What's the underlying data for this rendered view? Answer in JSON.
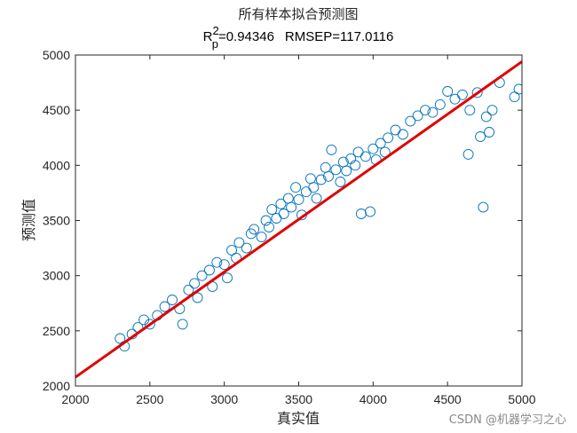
{
  "chart_data": {
    "type": "scatter",
    "title": "所有样本拟合预测图",
    "subtitle": {
      "r_symbol": "R",
      "r_superscript": "2",
      "r_subscript": "p",
      "r_value_text": "=0.94346",
      "rmsep_text": "RMSEP=117.0116"
    },
    "xlabel": "真实值",
    "ylabel": "预测值",
    "xlim": [
      2000,
      5000
    ],
    "ylim": [
      2000,
      5000
    ],
    "xticks": [
      2000,
      2500,
      3000,
      3500,
      4000,
      4500,
      5000
    ],
    "yticks": [
      2000,
      2500,
      3000,
      3500,
      4000,
      4500,
      5000
    ],
    "grid": false,
    "marker": "open-circle",
    "marker_color": "#0072BD",
    "fit_line": {
      "color": "#E00000",
      "x": [
        2000,
        5000
      ],
      "y": [
        2080,
        4940
      ]
    },
    "points": [
      [
        2300,
        2430
      ],
      [
        2330,
        2360
      ],
      [
        2380,
        2470
      ],
      [
        2420,
        2530
      ],
      [
        2460,
        2600
      ],
      [
        2500,
        2560
      ],
      [
        2550,
        2640
      ],
      [
        2600,
        2720
      ],
      [
        2650,
        2780
      ],
      [
        2700,
        2700
      ],
      [
        2720,
        2560
      ],
      [
        2760,
        2870
      ],
      [
        2800,
        2930
      ],
      [
        2820,
        2800
      ],
      [
        2850,
        3000
      ],
      [
        2900,
        3050
      ],
      [
        2920,
        2900
      ],
      [
        2950,
        3120
      ],
      [
        3000,
        3100
      ],
      [
        3020,
        2980
      ],
      [
        3050,
        3230
      ],
      [
        3080,
        3160
      ],
      [
        3100,
        3300
      ],
      [
        3150,
        3250
      ],
      [
        3180,
        3380
      ],
      [
        3200,
        3420
      ],
      [
        3250,
        3350
      ],
      [
        3280,
        3500
      ],
      [
        3300,
        3440
      ],
      [
        3320,
        3600
      ],
      [
        3350,
        3520
      ],
      [
        3380,
        3650
      ],
      [
        3400,
        3560
      ],
      [
        3430,
        3700
      ],
      [
        3450,
        3620
      ],
      [
        3480,
        3800
      ],
      [
        3500,
        3690
      ],
      [
        3520,
        3550
      ],
      [
        3550,
        3760
      ],
      [
        3580,
        3880
      ],
      [
        3600,
        3800
      ],
      [
        3620,
        3700
      ],
      [
        3650,
        3870
      ],
      [
        3680,
        3980
      ],
      [
        3700,
        3900
      ],
      [
        3720,
        4140
      ],
      [
        3750,
        3960
      ],
      [
        3780,
        3850
      ],
      [
        3800,
        4030
      ],
      [
        3820,
        3950
      ],
      [
        3850,
        4060
      ],
      [
        3880,
        4000
      ],
      [
        3900,
        4120
      ],
      [
        3920,
        3560
      ],
      [
        3950,
        4080
      ],
      [
        3980,
        3580
      ],
      [
        4000,
        4150
      ],
      [
        4020,
        4050
      ],
      [
        4050,
        4200
      ],
      [
        4080,
        4120
      ],
      [
        4100,
        4250
      ],
      [
        4150,
        4320
      ],
      [
        4200,
        4280
      ],
      [
        4250,
        4400
      ],
      [
        4300,
        4450
      ],
      [
        4350,
        4500
      ],
      [
        4400,
        4480
      ],
      [
        4450,
        4550
      ],
      [
        4500,
        4670
      ],
      [
        4550,
        4600
      ],
      [
        4600,
        4640
      ],
      [
        4650,
        4500
      ],
      [
        4700,
        4660
      ],
      [
        4720,
        4260
      ],
      [
        4740,
        3620
      ],
      [
        4760,
        4440
      ],
      [
        4780,
        4300
      ],
      [
        4800,
        4500
      ],
      [
        4850,
        4750
      ],
      [
        4950,
        4620
      ],
      [
        4980,
        4690
      ],
      [
        4640,
        4100
      ]
    ]
  },
  "watermark": "CSDN @机器学习之心"
}
